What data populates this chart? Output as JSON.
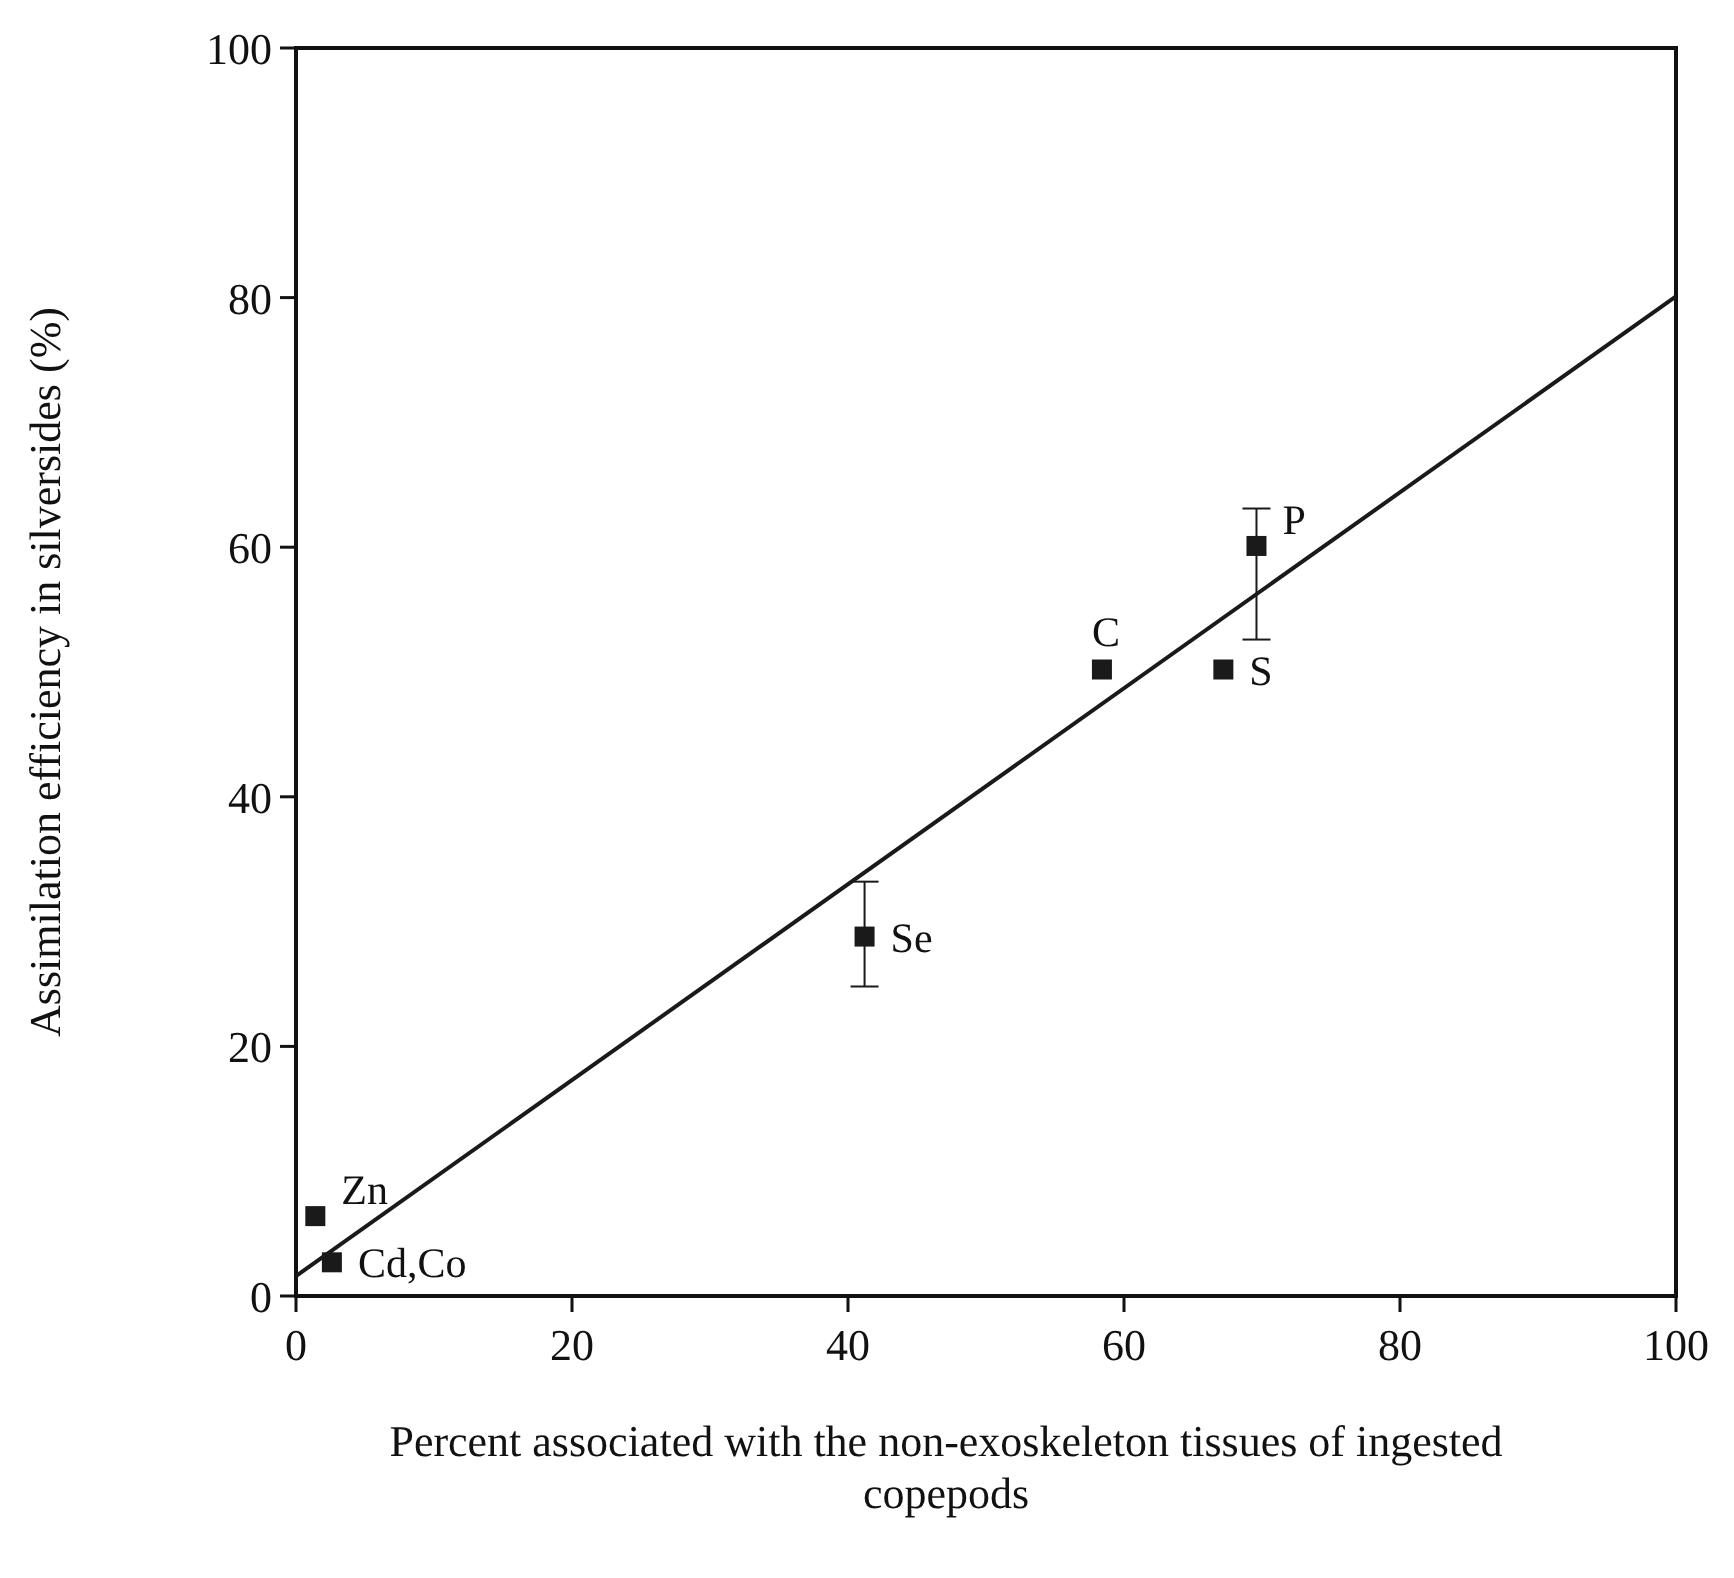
{
  "chart_data": {
    "type": "scatter",
    "xlabel": "Percent associated with the non-exoskeleton tissues of ingested copepods",
    "ylabel": "Assimilation efficiency in silversides (%)",
    "xlim": [
      0,
      100
    ],
    "ylim": [
      0,
      100
    ],
    "xticks": [
      0,
      20,
      40,
      60,
      80,
      100
    ],
    "yticks": [
      0,
      20,
      40,
      60,
      80,
      100
    ],
    "grid": false,
    "series": [
      {
        "color": "#1a1a1a",
        "marker": "square",
        "x": [
          1.4,
          2.6,
          41.2,
          58.4,
          67.2,
          69.6
        ],
        "values": [
          6.4,
          2.7,
          28.8,
          50.2,
          50.2,
          60.1
        ],
        "errors": [
          null,
          null,
          [
            24.8,
            33.2
          ],
          null,
          null,
          [
            52.6,
            63.1
          ]
        ]
      },
      {
        "type": "line",
        "color": "#1a1a1a",
        "marker": "none",
        "x": [
          0,
          100
        ],
        "values": [
          1.6,
          80.1
        ]
      }
    ],
    "annotations": [
      {
        "text": "Zn",
        "x": 1.4,
        "y": 6.4
      },
      {
        "text": "Cd,Co",
        "x": 2.6,
        "y": 2.7
      },
      {
        "text": "Se",
        "x": 41.2,
        "y": 28.8
      },
      {
        "text": "C",
        "x": 58.4,
        "y": 50.2
      },
      {
        "text": "S",
        "x": 67.2,
        "y": 50.2
      },
      {
        "text": "P",
        "x": 69.6,
        "y": 60.1
      }
    ]
  }
}
